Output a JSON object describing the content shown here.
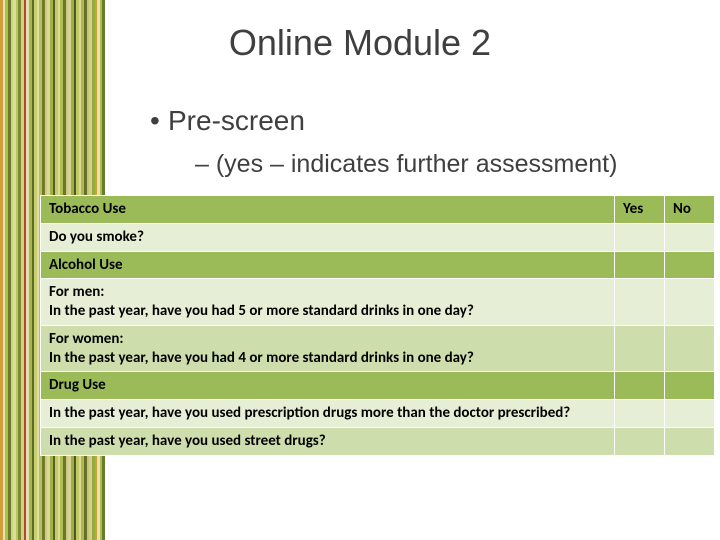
{
  "title": "Online Module 2",
  "bullets": {
    "l1": "Pre-screen",
    "l2": "– (yes – indicates further assessment)"
  },
  "table": {
    "yes": "Yes",
    "no": "No",
    "sections": {
      "tobacco": "Tobacco Use",
      "alcohol": "Alcohol Use",
      "drug": "Drug Use"
    },
    "q": {
      "smoke": "Do you smoke?",
      "men1": "For men:",
      "men2": "In the past year, have you had 5 or more standard drinks in one day?",
      "women1": "For women:",
      "women2": "In the past year, have you had 4 or more standard drinks in one day?",
      "rx": "In the past year, have you used prescription drugs more than the doctor prescribed?",
      "street": "In the past year, have you used street drugs?"
    }
  },
  "style": {
    "colors": {
      "header_bg": "#9bbb59",
      "row_light_bg": "#e6eed5",
      "row_alt_bg": "#cdddac",
      "yn_header_bg": "#9bbb59",
      "title_text": "#3f3f3f",
      "body_text": "#000000",
      "border": "#ffffff"
    },
    "fonts": {
      "title_size": 36,
      "bullet1_size": 28,
      "bullet2_size": 25,
      "table_size": 15
    },
    "stripes": [
      "#cfa03a",
      "#e7e2b4",
      "#a8c24a",
      "#6a7a2e",
      "#c9d77a",
      "#e0d9a0",
      "#b7c85e",
      "#7b8a34",
      "#d6cf8a",
      "#b04a2f",
      "#e6e0b0",
      "#a4b94a",
      "#5f6a28",
      "#c7d070",
      "#e2dca6",
      "#b3c458",
      "#6f7c2e",
      "#d2cc84",
      "#dcd69a",
      "#9fb446",
      "#566020",
      "#c3cc6a",
      "#e0da9e",
      "#afc052",
      "#6a762a",
      "#cec77e",
      "#d8d294",
      "#9aaf42",
      "#50581c",
      "#bfc864",
      "#ddd698",
      "#abbc4e",
      "#657026",
      "#cac278",
      "#d4ce8e",
      "#96ab3e",
      "#cfa03a",
      "#e7e2b4",
      "#a8c24a",
      "#6a7a2e"
    ]
  }
}
